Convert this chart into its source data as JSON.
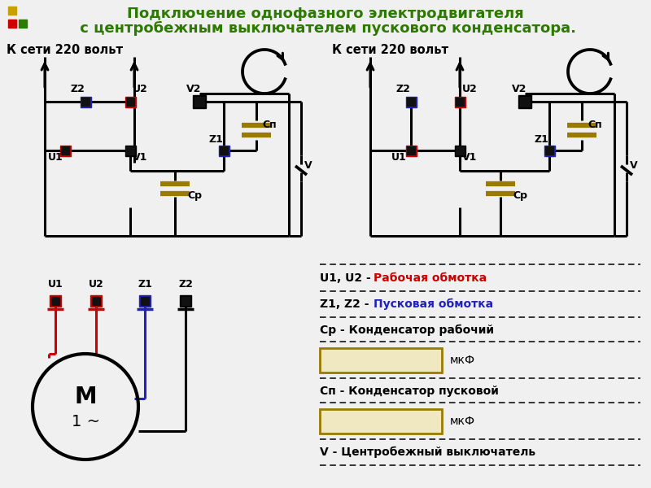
{
  "title_line1": "Подключение однофазного электродвигателя",
  "title_line2": " с центробежным выключателем пускового конденсатора.",
  "title_color": "#2d7a00",
  "bg_color": "#f0f0f0",
  "red_color": "#cc0000",
  "blue_color": "#2222bb",
  "black_color": "#000000",
  "gold_color": "#9a7b00",
  "label_k_seti": "К сети 220 вольт",
  "label_u1": "U1",
  "label_u2": "U2",
  "label_z1": "Z1",
  "label_z2": "Z2",
  "label_v1": "V1",
  "label_v2": "V2",
  "label_cp": "Cр",
  "label_cn": "Cп",
  "label_v": "V",
  "legend_u_black": "U1, U2 - ",
  "legend_u_colored": "Рабочая обмотка",
  "legend_z_black": "Z1, Z2 - ",
  "legend_z_colored": "Пусковая обмотка",
  "legend_cp": "Cр - Конденсатор рабочий",
  "legend_cn": "Cп - Конденсатор пусковой",
  "legend_v": "V - Центробежный выключатель",
  "label_m": "M",
  "label_1phase": "1 ~",
  "mkf": "мкФ",
  "yellow_sq": "#c8a000",
  "green_sq": "#2d7a00"
}
